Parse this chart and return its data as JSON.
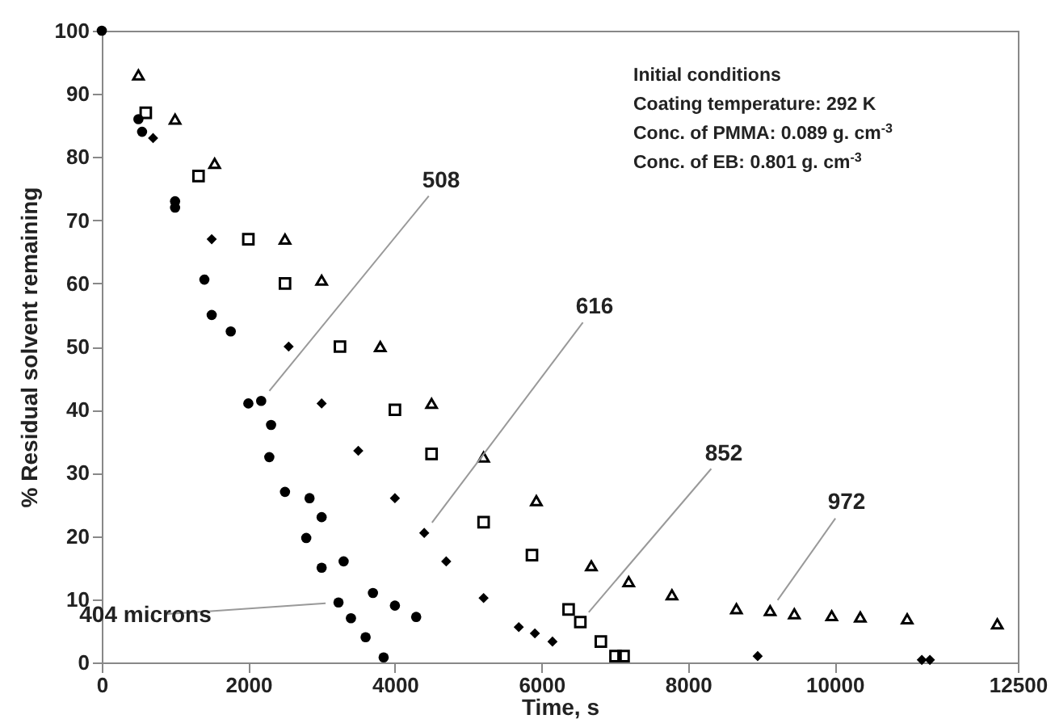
{
  "chart_data": {
    "type": "scatter",
    "xlabel": "Time, s",
    "ylabel": "% Residual solvent remaining",
    "xlim": [
      0,
      12500
    ],
    "ylim": [
      0,
      100
    ],
    "xticks": [
      0,
      2000,
      4000,
      6000,
      8000,
      10000,
      12500
    ],
    "yticks": [
      0,
      10,
      20,
      30,
      40,
      50,
      60,
      70,
      80,
      90,
      100
    ],
    "grid": false,
    "annotations": [
      "Initial conditions",
      "Coating temperature: 292 K",
      "Conc. of PMMA: 0.089 g. cm$^{-3}$",
      "Conc. of EB: 0.801 g. cm$^{-3}$"
    ],
    "series": [
      {
        "name": "404 microns",
        "color": "#000000",
        "marker": "circle",
        "x": [
          0,
          500,
          1000,
          1500,
          2000,
          2286,
          2500,
          2790,
          3000,
          3230,
          3400,
          3600,
          3846
        ],
        "values": [
          100,
          86,
          72,
          55,
          41,
          32.5,
          27,
          19.7,
          15,
          9.5,
          7,
          4,
          0.8
        ]
      },
      {
        "name": "508",
        "color": "#000000",
        "marker": "circle",
        "x": [
          550,
          1000,
          1400,
          1760,
          2175,
          2310,
          2835,
          3000,
          3300,
          3700,
          4000,
          4290
        ],
        "values": [
          84,
          73,
          60.6,
          52.4,
          41.4,
          37.6,
          26,
          23,
          16,
          11,
          9,
          7.2
        ]
      },
      {
        "name": "616",
        "color": "#000000",
        "marker": "diamond",
        "x": [
          700,
          1500,
          2550,
          3000,
          3500,
          4000,
          4400,
          4700,
          5210,
          5690,
          5910,
          6150,
          8950,
          11190,
          11300
        ],
        "values": [
          83,
          67,
          50,
          41,
          33.5,
          26,
          20.5,
          16,
          10.2,
          5.6,
          4.6,
          3.3,
          1,
          0.4,
          0.4
        ]
      },
      {
        "name": "852",
        "color": "#000000",
        "marker": "square",
        "x": [
          600,
          1320,
          2000,
          2500,
          3250,
          4000,
          4500,
          5210,
          5870,
          6370,
          6530,
          6810,
          7010,
          7120
        ],
        "values": [
          87,
          77,
          67,
          60,
          50,
          40,
          33,
          22.2,
          17,
          8.4,
          6.4,
          3.3,
          1,
          1
        ]
      },
      {
        "name": "972",
        "color": "#000000",
        "marker": "triangle",
        "x": [
          500,
          1000,
          1540,
          2500,
          3000,
          3800,
          4500,
          5210,
          5930,
          6680,
          7190,
          7780,
          8660,
          9120,
          9450,
          9960,
          10350,
          10990,
          12220
        ],
        "values": [
          93,
          86,
          79,
          67,
          60.5,
          50,
          41,
          32.5,
          25.6,
          15.3,
          12.8,
          10.7,
          8.5,
          8.2,
          7.7,
          7.4,
          7.2,
          6.9,
          6.1
        ]
      }
    ]
  }
}
